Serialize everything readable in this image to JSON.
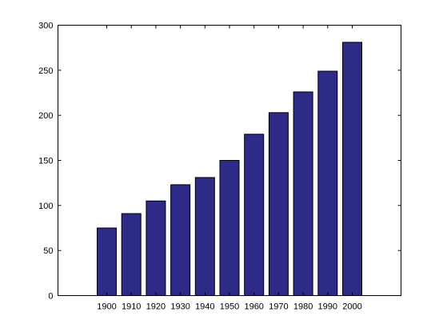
{
  "chart_data": {
    "type": "bar",
    "categories": [
      "1900",
      "1910",
      "1920",
      "1930",
      "1940",
      "1950",
      "1960",
      "1970",
      "1980",
      "1990",
      "2000"
    ],
    "values": [
      75,
      91,
      105,
      123,
      131,
      150,
      179,
      203,
      226,
      249,
      281
    ],
    "title": "",
    "xlabel": "",
    "ylabel": "",
    "ylim": [
      0,
      300
    ],
    "yticks": [
      0,
      50,
      100,
      150,
      200,
      250,
      300
    ],
    "grid": false,
    "bar_color": "#2e2a87",
    "edge_color": "#000000"
  }
}
